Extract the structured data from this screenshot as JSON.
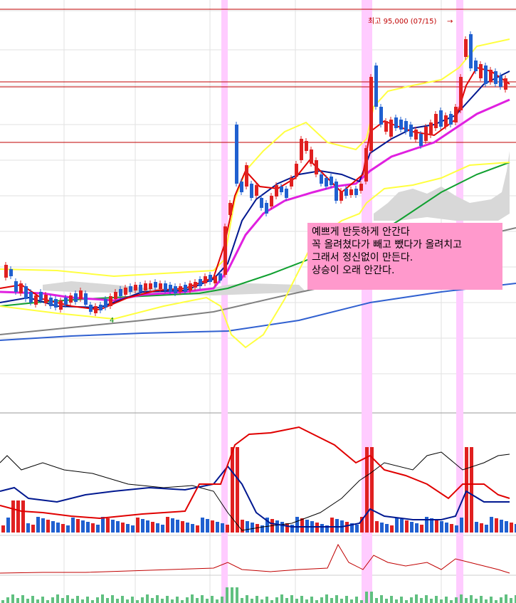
{
  "chart_data": {
    "type": "candlestick",
    "high_annotation": "최고 95,000 (07/15)",
    "annotation_note": [
      "예쁘게 반듯하게 안간다",
      "꼭 올려쳤다가 빼고 뺐다가 올려치고",
      "그래서 정신없이 만든다.",
      "상승이 오래 안간다."
    ],
    "small_marker": "4",
    "colors": {
      "up": "#e02020",
      "down": "#2060d0",
      "bollinger": "#ffff40",
      "ma_short": "#e00000",
      "ma_mid": "#001890",
      "ma_pink": "#e020e0",
      "ma_green": "#10a030",
      "ma_gray": "#808080",
      "ma_blue": "#3060d0",
      "highlight": "#ffccff",
      "support_line": "#c00000"
    }
  }
}
